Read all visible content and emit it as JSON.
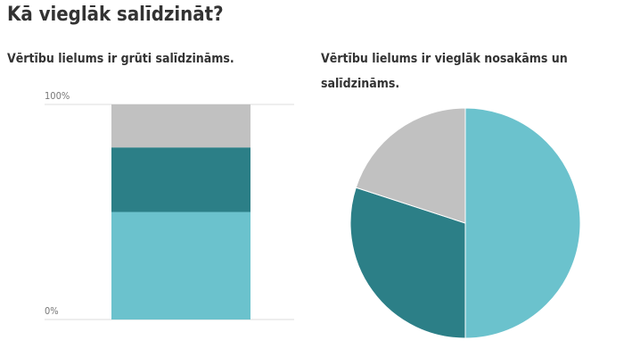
{
  "title": "Kā vieglāk salīdzināt?",
  "chart_data": [
    {
      "type": "stacked-bar",
      "title": "Vērtību lielums ir grūti salīdzināms.",
      "categories": [
        null
      ],
      "series": [
        {
          "color": "#6bc2cd",
          "values": [
            50
          ]
        },
        {
          "color": "#2c7f87",
          "values": [
            30
          ]
        },
        {
          "color": "#c1c1c1",
          "values": [
            20
          ]
        }
      ],
      "ylim": [
        0,
        100
      ],
      "yticks": [
        {
          "value": 0,
          "label": "0%"
        },
        {
          "value": 100,
          "label": "100%"
        }
      ],
      "grid": true
    },
    {
      "type": "pie",
      "title": "Vērtību lielums ir vieglāk nosakāms un salīdzināms.",
      "values": [
        50,
        30,
        20
      ],
      "colors": [
        "#6bc2cd",
        "#2c7f87",
        "#c1c1c1"
      ]
    }
  ]
}
